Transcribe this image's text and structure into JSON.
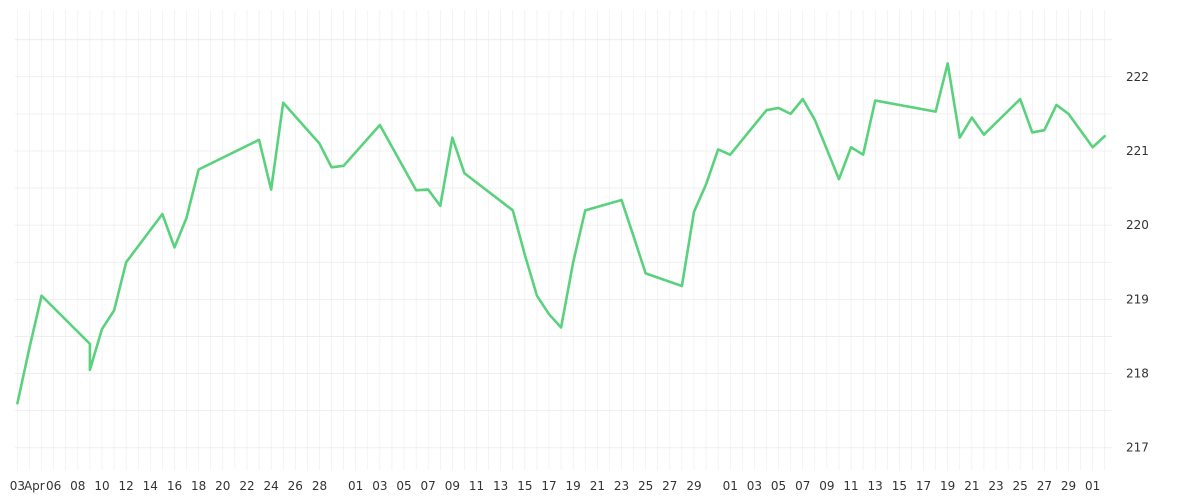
{
  "chart_data": {
    "type": "line",
    "title": "",
    "xlabel": "",
    "ylabel": "",
    "ylim": [
      216.7,
      222.9
    ],
    "grid": true,
    "legend": "none",
    "line_color": "#5ad27d",
    "grid_color": "#ececec",
    "y_ticks": [
      "217",
      "218",
      "219",
      "220",
      "221",
      "222"
    ],
    "x_tick_labels": [
      "03",
      "Apr",
      "06",
      "08",
      "10",
      "12",
      "14",
      "16",
      "18",
      "20",
      "22",
      "24",
      "26",
      "28",
      "01",
      "03",
      "05",
      "07",
      "09",
      "11",
      "13",
      "15",
      "17",
      "19",
      "21",
      "23",
      "25",
      "27",
      "29",
      "01",
      "03",
      "05",
      "07",
      "09",
      "11",
      "13",
      "15",
      "17",
      "19",
      "21",
      "23",
      "25",
      "27",
      "29",
      "01"
    ],
    "x_tick_days": [
      0,
      1.4,
      3,
      5,
      7,
      9,
      11,
      13,
      15,
      17,
      19,
      21,
      23,
      25,
      28,
      30,
      32,
      34,
      36,
      38,
      40,
      42,
      44,
      46,
      48,
      50,
      52,
      54,
      56,
      59,
      61,
      63,
      65,
      67,
      69,
      71,
      73,
      75,
      77,
      79,
      81,
      83,
      85,
      87,
      89
    ],
    "series": [
      {
        "name": "",
        "x": [
          0,
          1,
          2,
          6,
          6,
          7,
          8,
          9,
          12,
          13,
          14,
          15,
          20,
          21,
          22,
          25,
          26,
          27,
          30,
          33,
          34,
          35,
          36,
          37,
          41,
          42,
          43,
          44,
          45,
          46,
          47,
          50,
          51,
          52,
          55,
          56,
          57,
          58,
          59,
          62,
          63,
          64,
          65,
          66,
          68,
          69,
          70,
          71,
          76,
          77,
          78,
          79,
          80,
          83,
          84,
          85,
          86,
          87,
          89,
          90
        ],
        "y": [
          217.6,
          218.35,
          219.05,
          218.4,
          218.05,
          218.6,
          218.85,
          219.5,
          220.15,
          219.7,
          220.1,
          220.75,
          221.15,
          220.48,
          221.65,
          221.1,
          220.78,
          220.8,
          221.35,
          220.47,
          220.48,
          220.26,
          221.18,
          220.7,
          220.2,
          219.6,
          219.05,
          218.8,
          218.62,
          219.5,
          220.2,
          220.34,
          219.85,
          219.35,
          219.18,
          220.18,
          220.55,
          221.02,
          220.95,
          221.55,
          221.58,
          221.5,
          221.7,
          221.42,
          220.62,
          221.05,
          220.95,
          221.68,
          221.53,
          222.18,
          221.18,
          221.45,
          221.22,
          221.7,
          221.25,
          221.28,
          221.62,
          221.5,
          221.05,
          221.2
        ],
        "x_labels_note": ""
      }
    ]
  }
}
